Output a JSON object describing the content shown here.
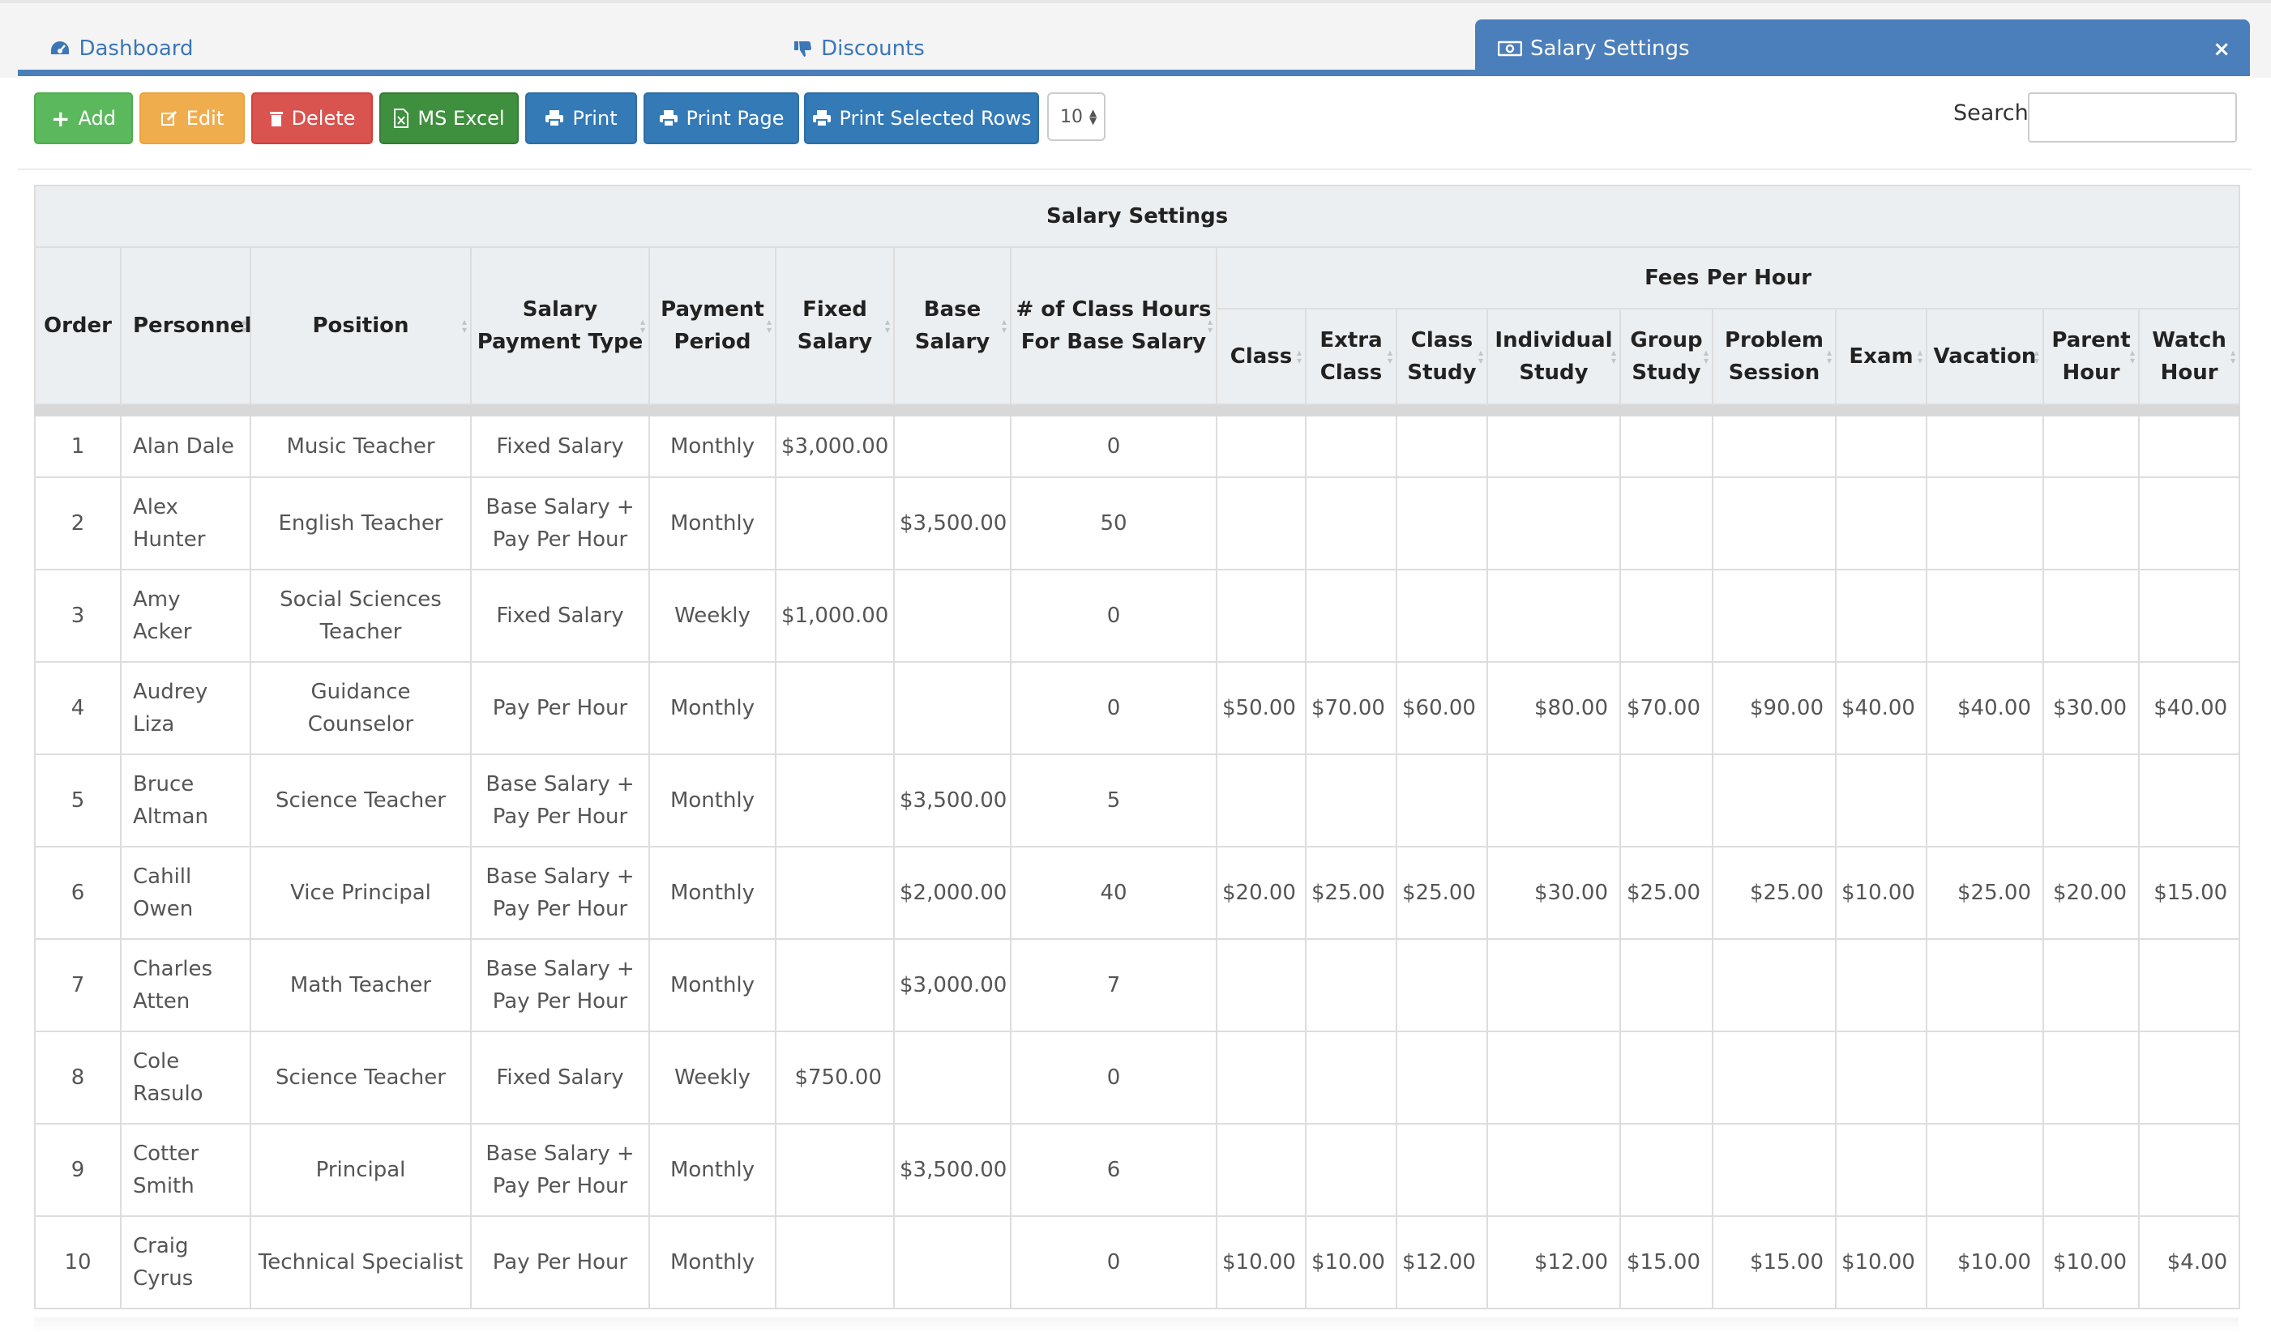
{
  "tabs": [
    {
      "label": "Dashboard",
      "icon": "dashboard-icon"
    },
    {
      "label": "Discounts",
      "icon": "thumbs-down-icon"
    },
    {
      "label": "Salary Settings",
      "icon": "money-icon",
      "active": true
    }
  ],
  "close_label": "×",
  "toolbar": {
    "add": "Add",
    "edit": "Edit",
    "delete": "Delete",
    "excel": "MS Excel",
    "print": "Print",
    "print_page": "Print Page",
    "print_selected": "Print Selected Rows",
    "page_size": "10",
    "search_label": "Search:",
    "search_value": ""
  },
  "table": {
    "title": "Salary Settings",
    "fees_group": "Fees Per Hour",
    "headers": {
      "order": "Order",
      "personnel": "Personnel",
      "position": "Position",
      "salary_type_1": "Salary",
      "salary_type_2": "Payment Type",
      "period_1": "Payment",
      "period_2": "Period",
      "fixed_1": "Fixed",
      "fixed_2": "Salary",
      "base_1": "Base",
      "base_2": "Salary",
      "hours_1": "# of Class Hours",
      "hours_2": "For Base Salary"
    },
    "fee_headers": [
      [
        "Class"
      ],
      [
        "Extra",
        "Class"
      ],
      [
        "Class",
        "Study"
      ],
      [
        "Individual",
        "Study"
      ],
      [
        "Group",
        "Study"
      ],
      [
        "Problem",
        "Session"
      ],
      [
        "Exam"
      ],
      [
        "Vacation"
      ],
      [
        "Parent",
        "Hour"
      ],
      [
        "Watch",
        "Hour"
      ]
    ],
    "rows": [
      {
        "order": "1",
        "personnel": [
          "Alan Dale"
        ],
        "position": [
          "Music Teacher"
        ],
        "type": [
          "Fixed Salary"
        ],
        "period": "Monthly",
        "fixed": "$3,000.00",
        "base": "",
        "hours": "0",
        "fees": [
          "",
          "",
          "",
          "",
          "",
          "",
          "",
          "",
          "",
          ""
        ]
      },
      {
        "order": "2",
        "personnel": [
          "Alex",
          "Hunter"
        ],
        "position": [
          "English Teacher"
        ],
        "type": [
          "Base Salary +",
          "Pay Per Hour"
        ],
        "period": "Monthly",
        "fixed": "",
        "base": "$3,500.00",
        "hours": "50",
        "fees": [
          "",
          "",
          "",
          "",
          "",
          "",
          "",
          "",
          "",
          ""
        ]
      },
      {
        "order": "3",
        "personnel": [
          "Amy Acker"
        ],
        "position": [
          "Social Sciences",
          "Teacher"
        ],
        "type": [
          "Fixed Salary"
        ],
        "period": "Weekly",
        "fixed": "$1,000.00",
        "base": "",
        "hours": "0",
        "fees": [
          "",
          "",
          "",
          "",
          "",
          "",
          "",
          "",
          "",
          ""
        ]
      },
      {
        "order": "4",
        "personnel": [
          "Audrey",
          "Liza"
        ],
        "position": [
          "Guidance Counselor"
        ],
        "type": [
          "Pay Per Hour"
        ],
        "period": "Monthly",
        "fixed": "",
        "base": "",
        "hours": "0",
        "fees": [
          "$50.00",
          "$70.00",
          "$60.00",
          "$80.00",
          "$70.00",
          "$90.00",
          "$40.00",
          "$40.00",
          "$30.00",
          "$40.00"
        ]
      },
      {
        "order": "5",
        "personnel": [
          "Bruce",
          "Altman"
        ],
        "position": [
          "Science Teacher"
        ],
        "type": [
          "Base Salary +",
          "Pay Per Hour"
        ],
        "period": "Monthly",
        "fixed": "",
        "base": "$3,500.00",
        "hours": "5",
        "fees": [
          "",
          "",
          "",
          "",
          "",
          "",
          "",
          "",
          "",
          ""
        ]
      },
      {
        "order": "6",
        "personnel": [
          "Cahill",
          "Owen"
        ],
        "position": [
          "Vice Principal"
        ],
        "type": [
          "Base Salary +",
          "Pay Per Hour"
        ],
        "period": "Monthly",
        "fixed": "",
        "base": "$2,000.00",
        "hours": "40",
        "fees": [
          "$20.00",
          "$25.00",
          "$25.00",
          "$30.00",
          "$25.00",
          "$25.00",
          "$10.00",
          "$25.00",
          "$20.00",
          "$15.00"
        ]
      },
      {
        "order": "7",
        "personnel": [
          "Charles",
          "Atten"
        ],
        "position": [
          "Math Teacher"
        ],
        "type": [
          "Base Salary +",
          "Pay Per Hour"
        ],
        "period": "Monthly",
        "fixed": "",
        "base": "$3,000.00",
        "hours": "7",
        "fees": [
          "",
          "",
          "",
          "",
          "",
          "",
          "",
          "",
          "",
          ""
        ]
      },
      {
        "order": "8",
        "personnel": [
          "Cole",
          "Rasulo"
        ],
        "position": [
          "Science Teacher"
        ],
        "type": [
          "Fixed Salary"
        ],
        "period": "Weekly",
        "fixed": "$750.00",
        "base": "",
        "hours": "0",
        "fees": [
          "",
          "",
          "",
          "",
          "",
          "",
          "",
          "",
          "",
          ""
        ]
      },
      {
        "order": "9",
        "personnel": [
          "Cotter",
          "Smith"
        ],
        "position": [
          "Principal"
        ],
        "type": [
          "Base Salary +",
          "Pay Per Hour"
        ],
        "period": "Monthly",
        "fixed": "",
        "base": "$3,500.00",
        "hours": "6",
        "fees": [
          "",
          "",
          "",
          "",
          "",
          "",
          "",
          "",
          "",
          ""
        ]
      },
      {
        "order": "10",
        "personnel": [
          "Craig",
          "Cyrus"
        ],
        "position": [
          "Technical Specialist"
        ],
        "type": [
          "Pay Per Hour"
        ],
        "period": "Monthly",
        "fixed": "",
        "base": "",
        "hours": "0",
        "fees": [
          "$10.00",
          "$10.00",
          "$12.00",
          "$12.00",
          "$15.00",
          "$15.00",
          "$10.00",
          "$10.00",
          "$10.00",
          "$4.00"
        ]
      }
    ]
  },
  "colors": {
    "primary": "#337ab7",
    "tab_active": "#4a7fbb",
    "success": "#5cb85c",
    "warning": "#f0ad4e",
    "danger": "#d9534f"
  }
}
